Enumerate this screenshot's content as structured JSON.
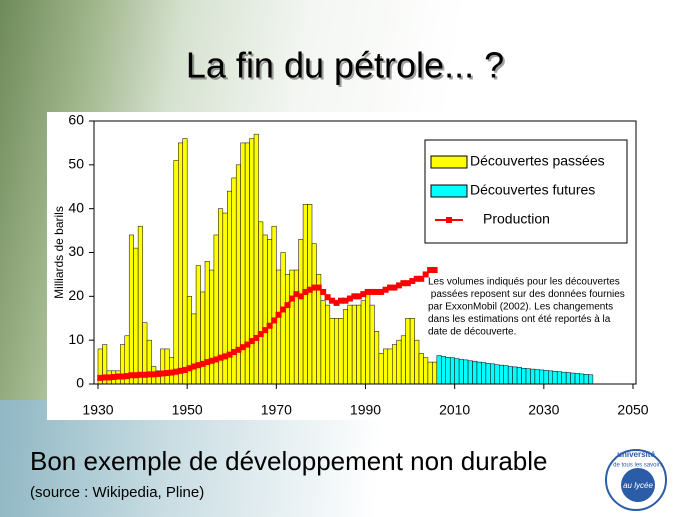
{
  "slide": {
    "title": "La fin du pétrole... ?",
    "subtitle": "Bon exemple de développement non durable",
    "source": "(source : Wikipedia, Pline)"
  },
  "logo": {
    "top": "université",
    "middle": "de tous les savoirs",
    "bottom": "au lycée"
  },
  "chart_data": {
    "type": "bar",
    "y_label": "Milliards de barils",
    "xlim": [
      1930,
      2050
    ],
    "xticks": [
      1930,
      1950,
      1970,
      1990,
      2010,
      2030,
      2050
    ],
    "ylim": [
      0,
      60
    ],
    "yticks": [
      0,
      10,
      20,
      30,
      40,
      50,
      60
    ],
    "legend": "upper right",
    "annotation": [
      "Les volumes indiqués pour les découvertes",
      " passées reposent sur des données fournies",
      "par ExxonMobil (2002). Les changements",
      "dans les estimations ont été reportés à la",
      "date de découverte."
    ],
    "series": [
      {
        "name": "Découvertes passées",
        "type": "bar",
        "color": "#ffff00",
        "x": [
          1930,
          1931,
          1932,
          1933,
          1934,
          1935,
          1936,
          1937,
          1938,
          1939,
          1940,
          1941,
          1942,
          1943,
          1944,
          1945,
          1946,
          1947,
          1948,
          1949,
          1950,
          1951,
          1952,
          1953,
          1954,
          1955,
          1956,
          1957,
          1958,
          1959,
          1960,
          1961,
          1962,
          1963,
          1964,
          1965,
          1966,
          1967,
          1968,
          1969,
          1970,
          1971,
          1972,
          1973,
          1974,
          1975,
          1976,
          1977,
          1978,
          1979,
          1980,
          1981,
          1982,
          1983,
          1984,
          1985,
          1986,
          1987,
          1988,
          1989,
          1990,
          1991,
          1992,
          1993,
          1994,
          1995,
          1996,
          1997,
          1998,
          1999,
          2000,
          2001,
          2002,
          2003,
          2004,
          2005
        ],
        "values": [
          8,
          9,
          3,
          3,
          3,
          9,
          11,
          34,
          31,
          36,
          14,
          10,
          4,
          3,
          8,
          8,
          6,
          51,
          55,
          56,
          20,
          16,
          27,
          21,
          28,
          26,
          34,
          40,
          39,
          44,
          47,
          50,
          55,
          55,
          56,
          57,
          37,
          34,
          33,
          36,
          26,
          30,
          25,
          26,
          26,
          33,
          41,
          41,
          32,
          25,
          19,
          18,
          15,
          15,
          15,
          17,
          18,
          18,
          18,
          19,
          21,
          18,
          12,
          7,
          8,
          8,
          9,
          10,
          11,
          15,
          15,
          10,
          7,
          6,
          5,
          5
        ]
      },
      {
        "name": "Découvertes futures",
        "type": "bar",
        "color": "#00ffff",
        "x": [
          2006,
          2007,
          2008,
          2009,
          2010,
          2011,
          2012,
          2013,
          2014,
          2015,
          2016,
          2017,
          2018,
          2019,
          2020,
          2021,
          2022,
          2023,
          2024,
          2025,
          2026,
          2027,
          2028,
          2029,
          2030,
          2031,
          2032,
          2033,
          2034,
          2035,
          2036,
          2037,
          2038,
          2039,
          2040
        ],
        "values": [
          6.5,
          6.3,
          6.1,
          6,
          5.8,
          5.6,
          5.5,
          5.3,
          5.2,
          5,
          4.9,
          4.7,
          4.6,
          4.4,
          4.3,
          4.2,
          4,
          3.9,
          3.8,
          3.6,
          3.5,
          3.4,
          3.3,
          3.2,
          3.1,
          3,
          2.9,
          2.8,
          2.7,
          2.6,
          2.5,
          2.4,
          2.3,
          2.2,
          2.1
        ]
      },
      {
        "name": "Production",
        "type": "line",
        "color": "#ff0000",
        "x": [
          1930,
          1931,
          1932,
          1933,
          1934,
          1935,
          1936,
          1937,
          1938,
          1939,
          1940,
          1941,
          1942,
          1943,
          1944,
          1945,
          1946,
          1947,
          1948,
          1949,
          1950,
          1951,
          1952,
          1953,
          1954,
          1955,
          1956,
          1957,
          1958,
          1959,
          1960,
          1961,
          1962,
          1963,
          1964,
          1965,
          1966,
          1967,
          1968,
          1969,
          1970,
          1971,
          1972,
          1973,
          1974,
          1975,
          1976,
          1977,
          1978,
          1979,
          1980,
          1981,
          1982,
          1983,
          1984,
          1985,
          1986,
          1987,
          1988,
          1989,
          1990,
          1991,
          1992,
          1993,
          1994,
          1995,
          1996,
          1997,
          1998,
          1999,
          2000,
          2001,
          2002,
          2003,
          2004,
          2005
        ],
        "values": [
          1.4,
          1.5,
          1.5,
          1.6,
          1.7,
          1.7,
          1.8,
          2,
          2,
          2.1,
          2.1,
          2.2,
          2.2,
          2.3,
          2.4,
          2.5,
          2.6,
          2.8,
          3,
          3.2,
          3.6,
          4,
          4.3,
          4.6,
          5,
          5.3,
          5.6,
          6,
          6.3,
          6.7,
          7.3,
          7.8,
          8.4,
          9,
          9.8,
          10.5,
          11.4,
          12.3,
          13.3,
          14.5,
          15.8,
          17,
          18,
          19.5,
          20.5,
          20,
          21,
          21.5,
          22,
          22,
          21,
          19.8,
          19,
          18.5,
          19,
          19,
          19.5,
          20,
          20,
          20.5,
          21,
          21,
          21,
          21,
          21.5,
          22,
          22,
          22.5,
          23,
          23,
          23.5,
          24,
          24,
          25,
          26,
          26
        ]
      }
    ]
  }
}
